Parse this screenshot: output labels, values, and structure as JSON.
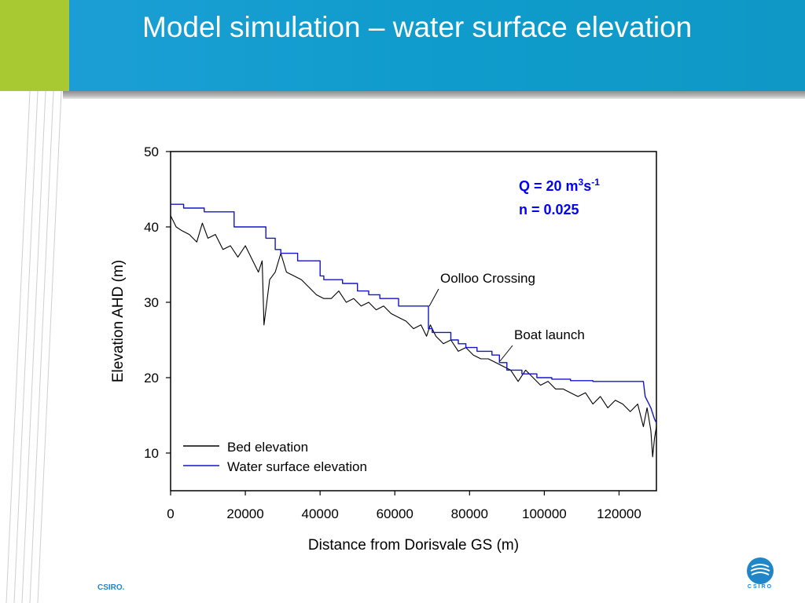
{
  "slide": {
    "title": "Model simulation – water surface elevation",
    "footer": "CSIRO.",
    "logo_text": "CSIRO"
  },
  "colors": {
    "header_blue": "#1e9fd6",
    "header_green": "#a8c932",
    "bed_line": "#000000",
    "water_line": "#1414c8",
    "annotation_blue": "#0000ff"
  },
  "chart_data": {
    "type": "line",
    "title": "",
    "xlabel": "Distance from Dorisvale GS (m)",
    "ylabel": "Elevation AHD (m)",
    "xlim": [
      0,
      130000
    ],
    "ylim": [
      5,
      50
    ],
    "xticks": [
      0,
      20000,
      40000,
      60000,
      80000,
      100000,
      120000
    ],
    "xtick_labels": [
      "0",
      "20000",
      "40000",
      "60000",
      "80000",
      "100000",
      "120000"
    ],
    "yticks": [
      10,
      20,
      30,
      40,
      50
    ],
    "ytick_labels": [
      "10",
      "20",
      "30",
      "40",
      "50"
    ],
    "grid": false,
    "legend_position": "bottom-left",
    "annotations": {
      "q_prefix": "Q = 20 m",
      "q_sup1": "3",
      "q_mid": "s",
      "q_sup2": "-1",
      "n_text": "n  = 0.025",
      "oolloo": "Oolloo Crossing",
      "boat": "Boat launch"
    },
    "series": [
      {
        "name": "Bed elevation",
        "color": "#000000",
        "x": [
          0,
          1500,
          3000,
          5000,
          7000,
          8500,
          10000,
          12000,
          14000,
          16000,
          18000,
          20000,
          22000,
          23500,
          24500,
          25000,
          26500,
          28000,
          29500,
          31000,
          33000,
          35000,
          37000,
          39000,
          41000,
          43000,
          45000,
          47000,
          49000,
          51000,
          53000,
          55000,
          57000,
          59000,
          61000,
          63000,
          65000,
          67000,
          68500,
          69500,
          71000,
          73000,
          75000,
          77000,
          79000,
          81000,
          83000,
          85000,
          87000,
          89000,
          91000,
          93000,
          95000,
          97000,
          99000,
          101000,
          103000,
          105000,
          107000,
          109000,
          111000,
          113000,
          115000,
          117000,
          119000,
          121000,
          123000,
          125000,
          126500,
          127500,
          128500,
          129000,
          129500,
          130000
        ],
        "y": [
          41.5,
          40.0,
          39.5,
          39.0,
          38.0,
          40.5,
          38.5,
          39.0,
          37.0,
          37.5,
          36.0,
          37.5,
          35.5,
          34.0,
          35.5,
          27.0,
          33.0,
          34.0,
          36.5,
          34.0,
          33.5,
          33.0,
          32.0,
          31.0,
          30.5,
          30.5,
          31.5,
          30.0,
          30.5,
          29.5,
          30.0,
          29.0,
          29.5,
          28.5,
          28.0,
          27.5,
          26.5,
          27.0,
          25.5,
          27.0,
          25.5,
          24.5,
          25.0,
          23.5,
          24.0,
          23.0,
          22.5,
          22.5,
          22.0,
          21.5,
          21.0,
          19.5,
          21.0,
          20.0,
          19.0,
          19.5,
          18.5,
          18.5,
          18.0,
          17.5,
          18.0,
          16.5,
          17.5,
          16.0,
          17.0,
          16.5,
          15.5,
          16.5,
          13.5,
          16.0,
          13.0,
          9.5,
          12.0,
          13.5
        ]
      },
      {
        "name": "Water surface elevation",
        "color": "#1414c8",
        "x": [
          0,
          3500,
          3500,
          9000,
          9000,
          17000,
          17000,
          25500,
          25500,
          28000,
          28000,
          29500,
          29500,
          34000,
          34000,
          40000,
          40000,
          41000,
          41000,
          46000,
          46000,
          50000,
          50000,
          53000,
          53000,
          56000,
          56000,
          61000,
          61000,
          69000,
          69000,
          70000,
          70000,
          75000,
          75000,
          77000,
          77000,
          79000,
          79000,
          82000,
          82000,
          86000,
          86000,
          88000,
          88000,
          90000,
          90000,
          94000,
          94000,
          98000,
          98000,
          102000,
          102000,
          107000,
          107000,
          113000,
          113000,
          126500,
          127000,
          128000,
          128500,
          129500,
          130000
        ],
        "y": [
          43.0,
          43.0,
          42.5,
          42.5,
          42.0,
          42.0,
          40.0,
          40.0,
          38.5,
          38.5,
          37.0,
          37.0,
          36.5,
          36.5,
          35.5,
          35.5,
          33.5,
          33.5,
          33.0,
          33.0,
          32.5,
          32.5,
          31.5,
          31.5,
          31.0,
          31.0,
          30.5,
          30.5,
          29.5,
          29.5,
          26.5,
          26.5,
          26.0,
          26.0,
          25.0,
          25.0,
          24.5,
          24.5,
          24.0,
          24.0,
          23.5,
          23.5,
          23.0,
          23.0,
          22.0,
          22.0,
          21.0,
          21.0,
          20.5,
          20.5,
          20.0,
          20.0,
          19.8,
          19.8,
          19.6,
          19.6,
          19.5,
          19.5,
          17.5,
          16.5,
          16.0,
          14.5,
          14.0
        ]
      }
    ]
  }
}
